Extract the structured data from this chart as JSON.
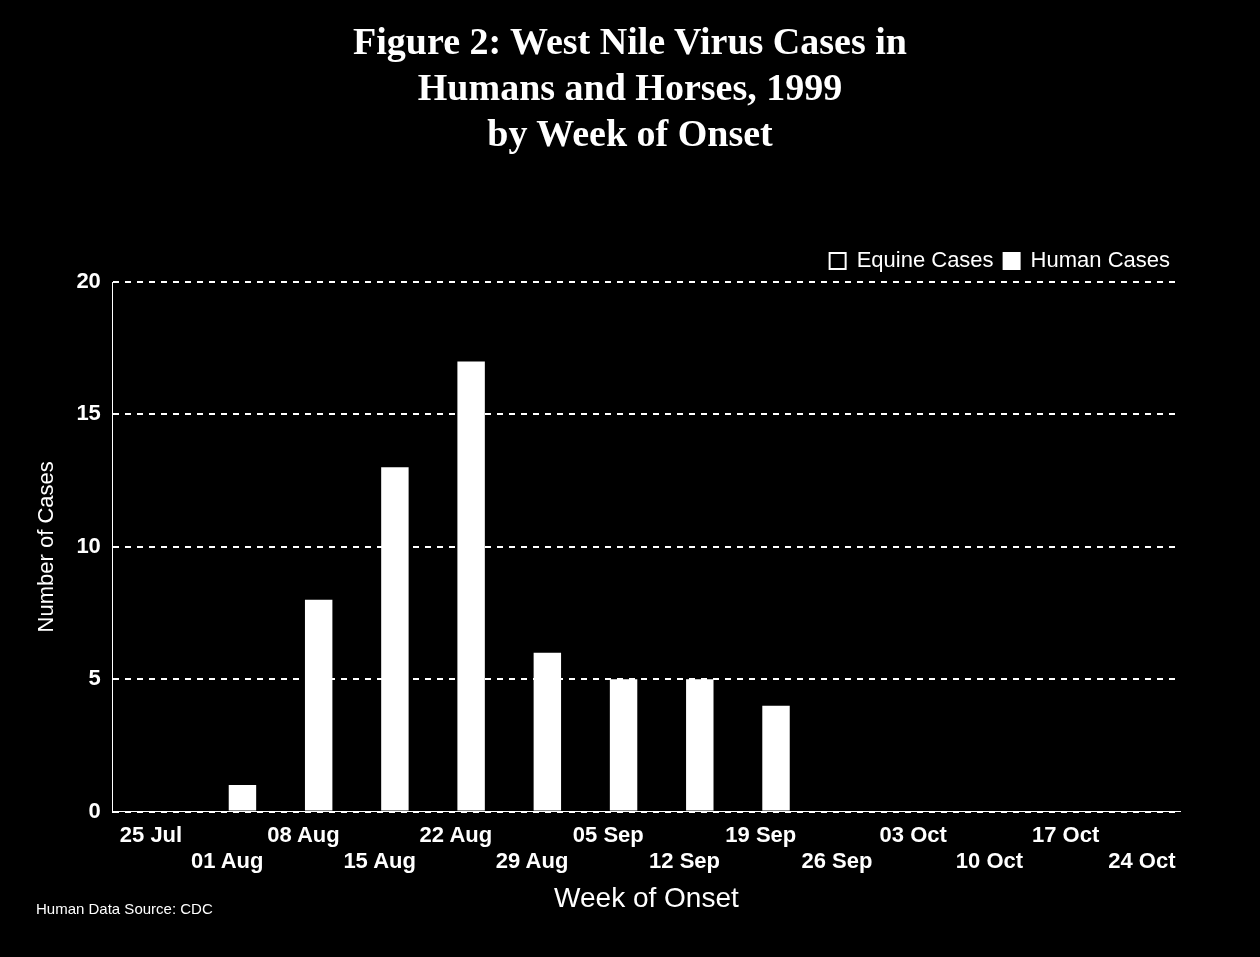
{
  "chart_data": {
    "type": "bar",
    "title": [
      "Figure 2: West Nile Virus Cases in",
      "Humans and Horses, 1999",
      "by Week of Onset"
    ],
    "xlabel": "Week of Onset",
    "ylabel": "Number of Cases",
    "categories": [
      "25 Jul",
      "01 Aug",
      "08 Aug",
      "15 Aug",
      "22 Aug",
      "29 Aug",
      "05 Sep",
      "12 Sep",
      "19 Sep",
      "26 Sep",
      "03 Oct",
      "10 Oct",
      "17 Oct",
      "24 Oct"
    ],
    "series": [
      {
        "name": "Equine Cases",
        "color": "#000000",
        "values": [
          null,
          null,
          null,
          null,
          null,
          null,
          null,
          null,
          null,
          null,
          null,
          null,
          null,
          null
        ]
      },
      {
        "name": "Human Cases",
        "color": "#ffffff",
        "values": [
          0,
          1,
          8,
          13,
          17,
          6,
          5,
          5,
          4,
          0,
          0,
          0,
          0,
          0
        ]
      }
    ],
    "ylim": [
      0,
      20
    ],
    "yticks": [
      0,
      5,
      10,
      15,
      20
    ],
    "grid": "y",
    "legend": "top right",
    "annotations": [
      "Human Data Source: CDC"
    ]
  }
}
